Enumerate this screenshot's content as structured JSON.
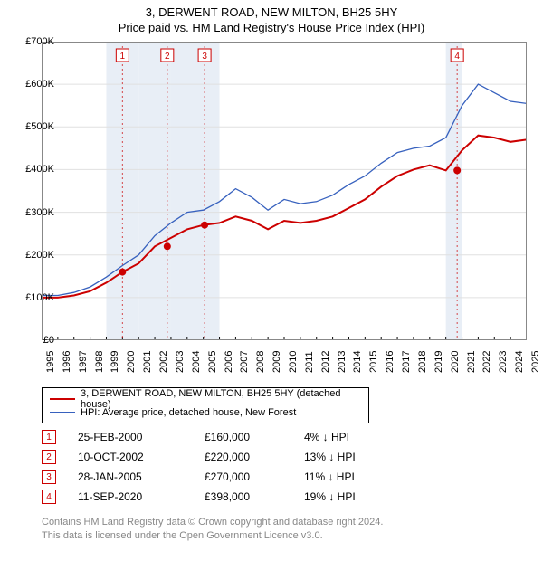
{
  "title": "3, DERWENT ROAD, NEW MILTON, BH25 5HY",
  "subtitle": "Price paid vs. HM Land Registry's House Price Index (HPI)",
  "chart": {
    "type": "line",
    "background_color": "#ffffff",
    "grid_color": "#e0e0e0",
    "shade_color": "#e8eef6",
    "border_color": "#888888",
    "x_axis": {
      "min": 1995,
      "max": 2025,
      "tick_step": 1,
      "labels": [
        "1995",
        "1996",
        "1997",
        "1998",
        "1999",
        "2000",
        "2001",
        "2002",
        "2003",
        "2004",
        "2005",
        "2006",
        "2007",
        "2008",
        "2009",
        "2010",
        "2011",
        "2012",
        "2013",
        "2014",
        "2015",
        "2016",
        "2017",
        "2018",
        "2019",
        "2020",
        "2021",
        "2022",
        "2023",
        "2024",
        "2025"
      ]
    },
    "y_axis": {
      "min": 0,
      "max": 700000,
      "tick_step": 100000,
      "labels": [
        "£0",
        "£100K",
        "£200K",
        "£300K",
        "£400K",
        "£500K",
        "£600K",
        "£700K"
      ],
      "prefix": "£"
    },
    "series": [
      {
        "name": "address",
        "color": "#cc0000",
        "width": 2,
        "points": [
          [
            1995,
            100000
          ],
          [
            1996,
            100000
          ],
          [
            1997,
            105000
          ],
          [
            1998,
            115000
          ],
          [
            1999,
            135000
          ],
          [
            2000,
            160000
          ],
          [
            2001,
            180000
          ],
          [
            2002,
            220000
          ],
          [
            2003,
            240000
          ],
          [
            2004,
            260000
          ],
          [
            2005,
            270000
          ],
          [
            2006,
            275000
          ],
          [
            2007,
            290000
          ],
          [
            2008,
            280000
          ],
          [
            2009,
            260000
          ],
          [
            2010,
            280000
          ],
          [
            2011,
            275000
          ],
          [
            2012,
            280000
          ],
          [
            2013,
            290000
          ],
          [
            2014,
            310000
          ],
          [
            2015,
            330000
          ],
          [
            2016,
            360000
          ],
          [
            2017,
            385000
          ],
          [
            2018,
            400000
          ],
          [
            2019,
            410000
          ],
          [
            2020,
            398000
          ],
          [
            2021,
            445000
          ],
          [
            2022,
            480000
          ],
          [
            2023,
            475000
          ],
          [
            2024,
            465000
          ],
          [
            2025,
            470000
          ]
        ]
      },
      {
        "name": "hpi",
        "color": "#3761be",
        "width": 1.3,
        "points": [
          [
            1995,
            105000
          ],
          [
            1996,
            105000
          ],
          [
            1997,
            112000
          ],
          [
            1998,
            125000
          ],
          [
            1999,
            148000
          ],
          [
            2000,
            175000
          ],
          [
            2001,
            200000
          ],
          [
            2002,
            245000
          ],
          [
            2003,
            275000
          ],
          [
            2004,
            300000
          ],
          [
            2005,
            305000
          ],
          [
            2006,
            325000
          ],
          [
            2007,
            355000
          ],
          [
            2008,
            335000
          ],
          [
            2009,
            305000
          ],
          [
            2010,
            330000
          ],
          [
            2011,
            320000
          ],
          [
            2012,
            325000
          ],
          [
            2013,
            340000
          ],
          [
            2014,
            365000
          ],
          [
            2015,
            385000
          ],
          [
            2016,
            415000
          ],
          [
            2017,
            440000
          ],
          [
            2018,
            450000
          ],
          [
            2019,
            455000
          ],
          [
            2020,
            475000
          ],
          [
            2021,
            550000
          ],
          [
            2022,
            600000
          ],
          [
            2023,
            580000
          ],
          [
            2024,
            560000
          ],
          [
            2025,
            555000
          ]
        ]
      }
    ],
    "sale_markers": [
      {
        "n": "1",
        "x": 2000,
        "y": 160000
      },
      {
        "n": "2",
        "x": 2002.77,
        "y": 220000
      },
      {
        "n": "3",
        "x": 2005.08,
        "y": 270000
      },
      {
        "n": "4",
        "x": 2020.7,
        "y": 398000
      }
    ],
    "shaded_ranges": [
      [
        1999,
        2001
      ],
      [
        2001,
        2003
      ],
      [
        2003,
        2006
      ],
      [
        2020,
        2021
      ]
    ]
  },
  "legend": {
    "row1": {
      "color": "#cc0000",
      "label": "3, DERWENT ROAD, NEW MILTON, BH25 5HY (detached house)"
    },
    "row2": {
      "color": "#3761be",
      "label": "HPI: Average price, detached house, New Forest"
    }
  },
  "sales": [
    {
      "n": "1",
      "date": "25-FEB-2000",
      "price": "£160,000",
      "hpi": "4% ↓ HPI"
    },
    {
      "n": "2",
      "date": "10-OCT-2002",
      "price": "£220,000",
      "hpi": "13% ↓ HPI"
    },
    {
      "n": "3",
      "date": "28-JAN-2005",
      "price": "£270,000",
      "hpi": "11% ↓ HPI"
    },
    {
      "n": "4",
      "date": "11-SEP-2020",
      "price": "£398,000",
      "hpi": "19% ↓ HPI"
    }
  ],
  "footer": {
    "line1": "Contains HM Land Registry data © Crown copyright and database right 2024.",
    "line2": "This data is licensed under the Open Government Licence v3.0."
  }
}
